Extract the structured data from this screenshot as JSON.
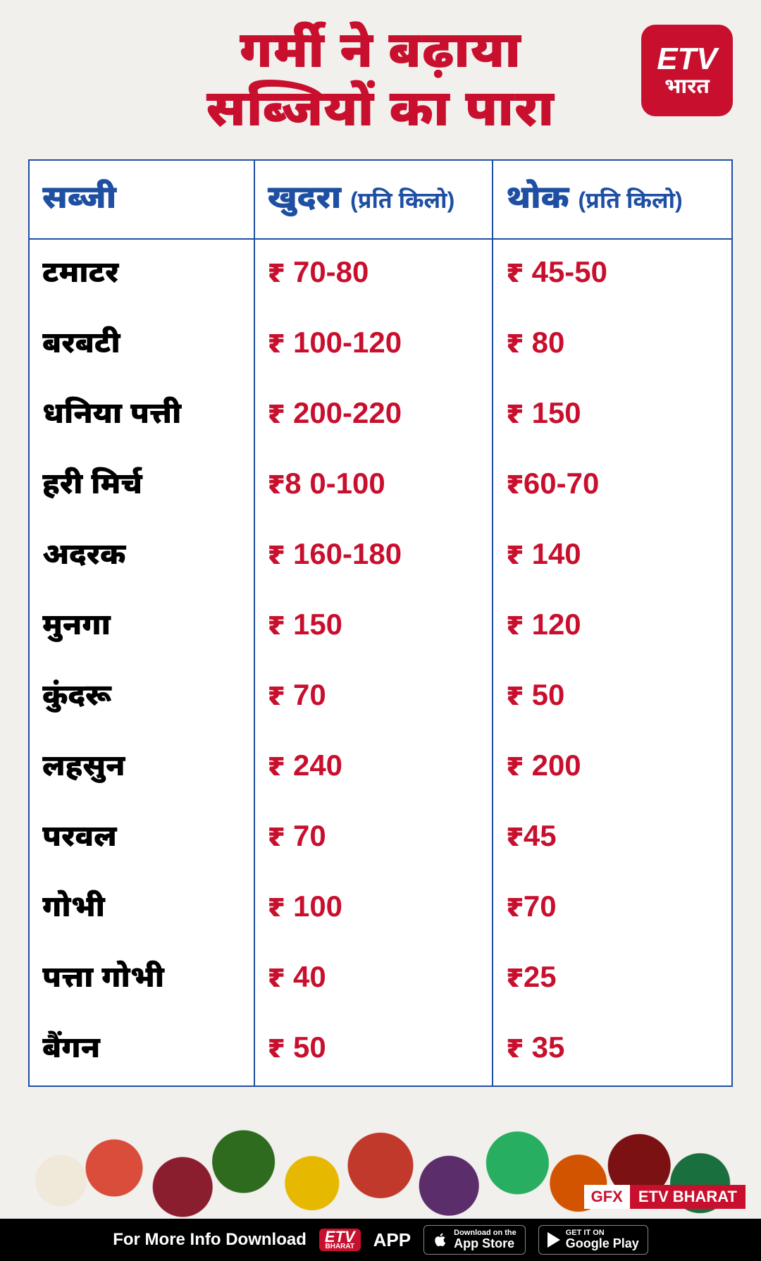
{
  "title_line1": "गर्मी ने बढ़ाया",
  "title_line2": "सब्जियों का पारा",
  "logo_top": "ETV",
  "logo_bottom": "भारत",
  "columns": {
    "c1": "सब्जी",
    "c2_main": "खुदरा",
    "c2_sub": "(प्रति किलो)",
    "c3_main": "थोक",
    "c3_sub": "(प्रति किलो)"
  },
  "rows": [
    {
      "name": "टमाटर",
      "retail": "₹ 70-80",
      "wholesale": "₹ 45-50"
    },
    {
      "name": "बरबटी",
      "retail": "₹ 100-120",
      "wholesale": "₹ 80"
    },
    {
      "name": "धनिया पत्ती",
      "retail": "₹ 200-220",
      "wholesale": "₹ 150"
    },
    {
      "name": "हरी मिर्च",
      "retail": "₹8 0-100",
      "wholesale": "₹60-70"
    },
    {
      "name": "अदरक",
      "retail": "₹ 160-180",
      "wholesale": "₹ 140"
    },
    {
      "name": "मुनगा",
      "retail": "₹ 150",
      "wholesale": "₹ 120"
    },
    {
      "name": "कुंदरू",
      "retail": "₹ 70",
      "wholesale": "₹ 50"
    },
    {
      "name": "लहसुन",
      "retail": "₹ 240",
      "wholesale": "₹ 200"
    },
    {
      "name": "परवल",
      "retail": "₹ 70",
      "wholesale": "₹45"
    },
    {
      "name": "गोभी",
      "retail": "₹ 100",
      "wholesale": "₹70"
    },
    {
      "name": "पत्ता गोभी",
      "retail": "₹ 40",
      "wholesale": "₹25"
    },
    {
      "name": "बैंगन",
      "retail": "₹ 50",
      "wholesale": "₹ 35"
    }
  ],
  "gfx_label_1": "GFX",
  "gfx_label_2": "ETV BHARAT",
  "footer": {
    "text": "For More Info Download",
    "mini_top": "ETV",
    "mini_bot": "BHARAT",
    "app": "APP",
    "appstore_small": "Download on the",
    "appstore_big": "App Store",
    "play_small": "GET IT ON",
    "play_big": "Google Play"
  },
  "colors": {
    "brand_red": "#c8102e",
    "header_blue": "#1e4fa3",
    "background": "#f2f0ed",
    "black": "#000000",
    "white": "#ffffff"
  }
}
